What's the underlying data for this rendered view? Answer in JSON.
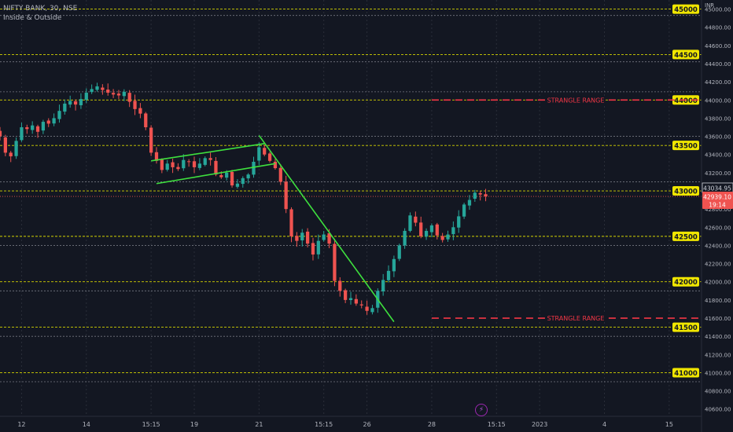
{
  "header": {
    "title": "NIFTY BANK, 30, NSE",
    "indicator": "Inside & Outside"
  },
  "currency": "INR",
  "colors": {
    "background": "#131722",
    "up": "#26a69a",
    "down": "#ef5350",
    "level_line": "#d4d400",
    "trend": "#3ee03e",
    "strangle": "#f23645",
    "level_label_bg": "#f0e600",
    "price_label_bg": "#ef5350"
  },
  "icons": {
    "bolt": "lightning-icon"
  },
  "chart_data": {
    "type": "candlestick",
    "y_ticks": [
      45000,
      44800,
      44600,
      44400,
      44200,
      44000,
      43800,
      43600,
      43400,
      43200,
      43000,
      42800,
      42600,
      42400,
      42200,
      42000,
      41800,
      41600,
      41400,
      41200,
      41000,
      40800,
      40600
    ],
    "y_tick_labels": [
      "45000.00",
      "44800.00",
      "44600.00",
      "44400.00",
      "44200.00",
      "44000.00",
      "43800.00",
      "43600.00",
      "43400.00",
      "43200.00",
      "43000.00",
      "42800.00",
      "42600.00",
      "42400.00",
      "42200.00",
      "42000.00",
      "41800.00",
      "41600.00",
      "41400.00",
      "41200.00",
      "41000.00",
      "40800.00",
      "40600.00"
    ],
    "ylim": [
      40520,
      45100
    ],
    "x_ticks": [
      {
        "label": "12",
        "bar": 4
      },
      {
        "label": "14",
        "bar": 16
      },
      {
        "label": "15:15",
        "bar": 28
      },
      {
        "label": "19",
        "bar": 36
      },
      {
        "label": "21",
        "bar": 48
      },
      {
        "label": "15:15",
        "bar": 60
      },
      {
        "label": "26",
        "bar": 68
      },
      {
        "label": "28",
        "bar": 80
      },
      {
        "label": "15:15",
        "bar": 92
      },
      {
        "label": "2023",
        "bar": 100
      },
      {
        "label": "4",
        "bar": 112
      },
      {
        "label": "15",
        "bar": 124
      }
    ],
    "xlim": [
      0,
      130
    ],
    "levels": [
      {
        "value": 45000,
        "label": "45000",
        "label_color": "#f0e600"
      },
      {
        "value": 44500,
        "label": "44500",
        "label_color": "#f0e600"
      },
      {
        "value": 44000,
        "label": "44000",
        "label_color": "#f0e600"
      },
      {
        "value": 43500,
        "label": "43500",
        "label_color": "#f0e600"
      },
      {
        "value": 43000,
        "label": "43000",
        "label_color": "#f0e600"
      },
      {
        "value": 42500,
        "label": "42500",
        "label_color": "#f0e600"
      },
      {
        "value": 42000,
        "label": "42000",
        "label_color": "#f0e600"
      },
      {
        "value": 41500,
        "label": "41500",
        "label_color": "#f0e600"
      },
      {
        "value": 41000,
        "label": "41000",
        "label_color": "#f0e600"
      }
    ],
    "secondary_levels": [
      44930,
      44420,
      44090,
      43600,
      43100,
      42400,
      41900,
      41400,
      40900
    ],
    "strangle_lines": [
      {
        "value": 44000,
        "from_bar": 80,
        "text": "STRANGLE RANGE",
        "price_tag": "44000.00"
      },
      {
        "value": 41600,
        "from_bar": 80,
        "text": "STRANGLE RANGE",
        "price_tag": "41600.00"
      }
    ],
    "trendlines": [
      {
        "from": [
          28,
          43330
        ],
        "to": [
          49,
          43520
        ]
      },
      {
        "from": [
          29,
          43080
        ],
        "to": [
          51,
          43300
        ]
      },
      {
        "from": [
          48,
          43610
        ],
        "to": [
          73,
          41560
        ]
      }
    ],
    "price_labels": [
      {
        "value": 43034.95,
        "text": "43034.95",
        "style": "outline"
      },
      {
        "value": 42939.1,
        "text": "42939.10",
        "sub": "19:14",
        "style": "filled"
      }
    ],
    "current_price": 42939.1,
    "close_series": [
      43600,
      43420,
      43380,
      43550,
      43700,
      43680,
      43720,
      43650,
      43760,
      43740,
      43800,
      43880,
      43960,
      43990,
      43950,
      44010,
      44080,
      44120,
      44150,
      44110,
      44080,
      44060,
      44050,
      44090,
      43980,
      43900,
      43850,
      43700,
      43420,
      43330,
      43230,
      43300,
      43260,
      43240,
      43340,
      43320,
      43260,
      43300,
      43360,
      43340,
      43180,
      43150,
      43200,
      43060,
      43080,
      43140,
      43180,
      43320,
      43480,
      43400,
      43330,
      43250,
      43100,
      42800,
      42500,
      42450,
      42540,
      42420,
      42300,
      42450,
      42520,
      42420,
      42010,
      41900,
      41800,
      41820,
      41760,
      41740,
      41680,
      41710,
      41900,
      42020,
      42120,
      42250,
      42400,
      42560,
      42730,
      42650,
      42500,
      42560,
      42620,
      42510,
      42460,
      42520,
      42600,
      42720,
      42850,
      42900,
      42980,
      42960,
      42940
    ]
  }
}
